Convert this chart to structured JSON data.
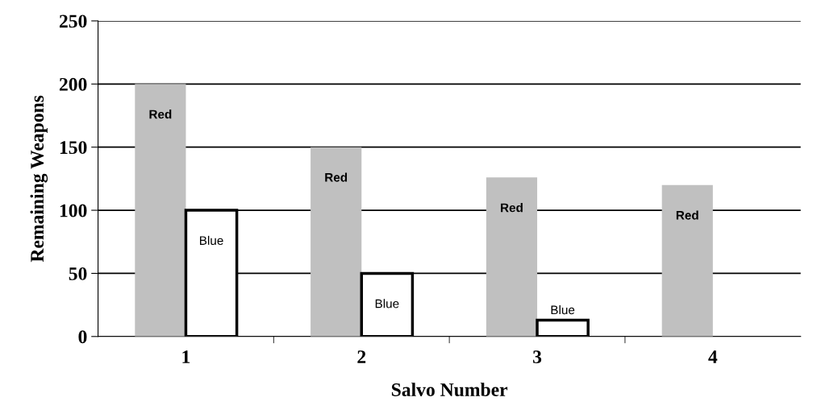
{
  "chart_data": {
    "type": "bar",
    "xlabel": "Salvo Number",
    "ylabel": "Remaining Weapons",
    "categories": [
      "1",
      "2",
      "3",
      "4"
    ],
    "series": [
      {
        "name": "Red",
        "color": "#c0c0c0",
        "values": [
          200,
          150,
          126,
          120
        ]
      },
      {
        "name": "Blue",
        "color": "#ffffff",
        "values": [
          100,
          50,
          13,
          null
        ]
      }
    ],
    "ylim": [
      0,
      250
    ],
    "yticks": [
      0,
      50,
      100,
      150,
      200,
      250
    ],
    "grid": "y",
    "legend": false
  }
}
